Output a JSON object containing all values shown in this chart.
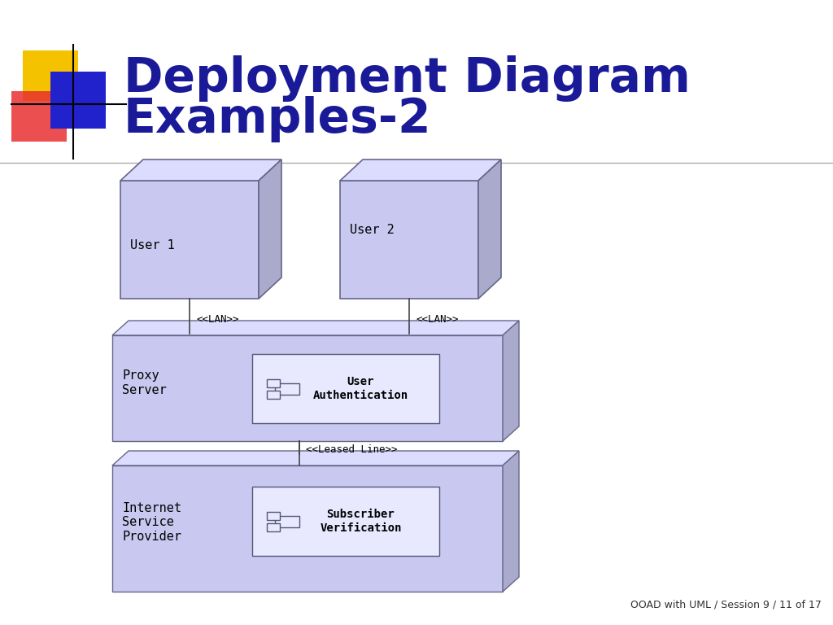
{
  "title_line1": "Deployment Diagram",
  "title_line2": "Examples-2",
  "title_color": "#1a1a99",
  "title_fontsize": 42,
  "background_color": "#ffffff",
  "node_fill": "#c8c8f0",
  "node_edge": "#666688",
  "node_top_fill": "#dcdcff",
  "node_side_fill": "#aaaacc",
  "component_fill": "#e8e8ff",
  "component_edge": "#555577",
  "text_color": "#000000",
  "conn_color": "#444444",
  "footer_text": "OOAD with UML / Session 9 / 11 of 17"
}
